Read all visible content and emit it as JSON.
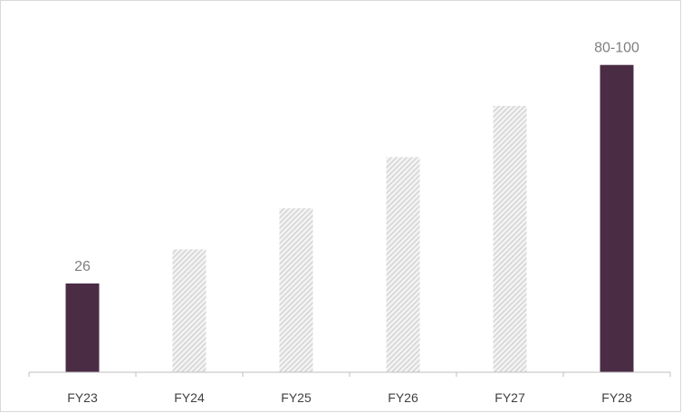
{
  "chart_data": {
    "type": "bar",
    "title": "",
    "xlabel": "",
    "ylabel": "",
    "categories": [
      "FY23",
      "FY24",
      "FY25",
      "FY26",
      "FY27",
      "FY28"
    ],
    "values": [
      26,
      36,
      48,
      63,
      78,
      90
    ],
    "styles": [
      "solid",
      "hatched",
      "hatched",
      "hatched",
      "hatched",
      "solid"
    ],
    "data_labels": [
      "26",
      "",
      "",
      "",
      "",
      "80-100"
    ],
    "ylim": [
      0,
      100
    ],
    "grid": false,
    "legend": "none",
    "colors": {
      "solid": "#4a2c45",
      "hatch_line": "#c9c9c9",
      "hatch_bg": "#f2f2f2",
      "axis": "#bfbfbf",
      "tick_text": "#404040",
      "value_text": "#7f7f7f",
      "border": "#d9d9d9"
    }
  }
}
